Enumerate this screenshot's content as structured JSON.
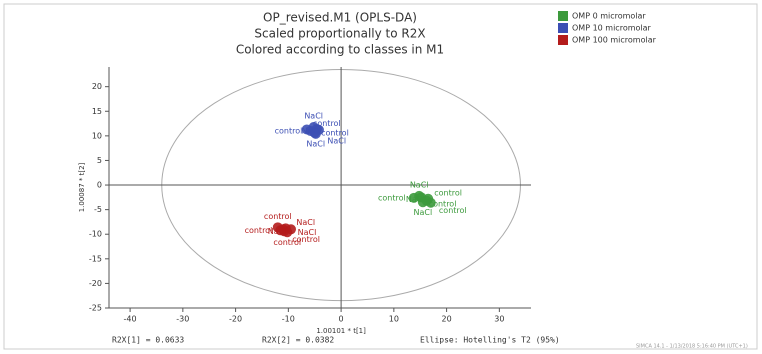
{
  "chart_data": {
    "type": "scatter",
    "title": [
      "OP_revised.M1 (OPLS-DA)",
      "Scaled proportionally to R2X",
      "Colored according to classes in M1"
    ],
    "x_label": "1.00101 * t[1]",
    "y_label": "1.00087 * t[2]",
    "xlim": [
      -44,
      36
    ],
    "ylim": [
      -25,
      24
    ],
    "xticks": [
      -40,
      -30,
      -20,
      -10,
      0,
      10,
      20,
      30
    ],
    "yticks": [
      -25,
      -20,
      -15,
      -10,
      -5,
      0,
      5,
      10,
      15,
      20
    ],
    "ellipse": {
      "x_radius": 34,
      "y_radius": 23.5
    },
    "series": [
      {
        "name": "OMP 0 micromolar",
        "color": "#3c9a3c",
        "x": [
          14.8,
          16.5,
          13.8,
          15.2,
          16.2,
          17,
          15.5
        ],
        "y": [
          -2.2,
          -2.8,
          -2.6,
          -2.5,
          -3.2,
          -3.6,
          -3.5
        ],
        "labels": [
          "NaCl",
          "control",
          "control",
          "NaCl",
          "control",
          "control",
          "NaCl"
        ]
      },
      {
        "name": "OMP 10 micromolar",
        "color": "#3c4fb4",
        "x": [
          -5.2,
          -6.5,
          -5.8,
          -4.6,
          -4.2,
          -5,
          -4.8
        ],
        "y": [
          11.8,
          11.3,
          11,
          11.4,
          11.2,
          10.6,
          10.4
        ],
        "labels": [
          "NaCl",
          "control",
          "control",
          "NaCl",
          "control",
          "NaCl",
          "NaCl"
        ]
      },
      {
        "name": "OMP 100 micromolar",
        "color": "#b41c1c",
        "x": [
          -12,
          -10.5,
          -11.5,
          -11,
          -9.5,
          -10.8,
          -10.2
        ],
        "y": [
          -8.6,
          -8.8,
          -9.2,
          -9,
          -9,
          -9.4,
          -9.6
        ],
        "labels": [
          "control",
          "NaCl",
          "control",
          "NaCl",
          "NaCl",
          "control",
          "control"
        ]
      }
    ],
    "legend_position": "top-right",
    "footer": [
      "R2X[1] = 0.0633",
      "R2X[2] = 0.0382",
      "Ellipse: Hotelling's T2 (95%)",
      "SIMCA 14.1 - 1/13/2018 5:16:40 PM (UTC+1)"
    ]
  }
}
